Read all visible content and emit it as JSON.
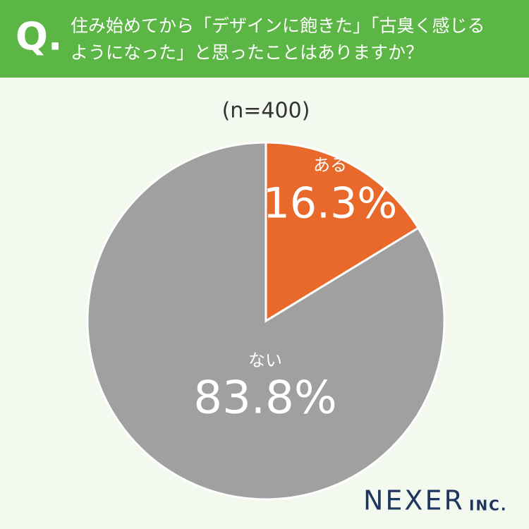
{
  "header": {
    "mark": "Q.",
    "lines": [
      "住み始めてから「デザインに飽きた」「古臭く感じる",
      "ようになった」と思ったことはありますか？"
    ]
  },
  "chart_data": {
    "type": "pie",
    "subtitle": "(n=400)",
    "categories": [
      "ある",
      "ない"
    ],
    "values": [
      16.3,
      83.8
    ],
    "value_labels": [
      "16.3%",
      "83.8%"
    ],
    "colors": [
      "#e8692a",
      "#a0a0a0"
    ]
  },
  "logo": {
    "name": "NEXER",
    "suffix": "INC."
  }
}
